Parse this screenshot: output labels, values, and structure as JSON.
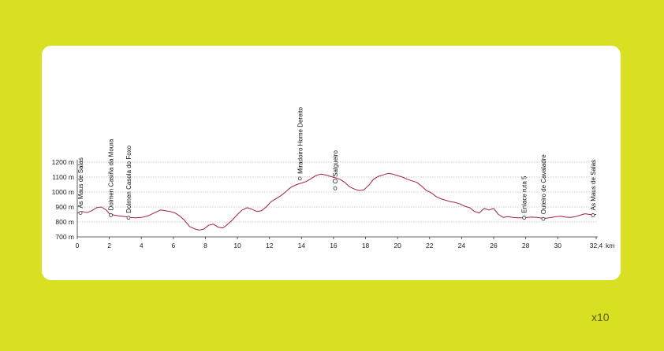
{
  "zoom_label": "x10",
  "chart_data": {
    "type": "line",
    "title": "",
    "xlabel": "",
    "ylabel": "",
    "x_unit_label": "km",
    "y_unit": "m",
    "xlim": [
      0,
      32.4
    ],
    "ylim": [
      700,
      1200
    ],
    "x_ticks": [
      0,
      2,
      4,
      6,
      8,
      10,
      12,
      14,
      16,
      18,
      20,
      22,
      24,
      26,
      28,
      30,
      32.4
    ],
    "x_tick_labels": [
      "0",
      "2",
      "4",
      "6",
      "8",
      "10",
      "12",
      "14",
      "16",
      "18",
      "20",
      "22",
      "24",
      "26",
      "28",
      "30",
      "32,4"
    ],
    "y_ticks": [
      700,
      800,
      900,
      1000,
      1100,
      1200
    ],
    "y_tick_labels": [
      "700 m",
      "800 m",
      "900 m",
      "1000 m",
      "1100 m",
      "1200 m"
    ],
    "grid": true,
    "line_color": "#a3203a",
    "series": [
      {
        "x": [
          0,
          0.3,
          0.6,
          0.9,
          1.2,
          1.5,
          1.8,
          2.0,
          2.3,
          2.6,
          3.0,
          3.3,
          3.6,
          4.0,
          4.4,
          4.8,
          5.2,
          5.5,
          5.8,
          6.1,
          6.4,
          6.7,
          7.0,
          7.3,
          7.6,
          7.9,
          8.2,
          8.5,
          8.8,
          9.1,
          9.4,
          9.7,
          10.0,
          10.3,
          10.6,
          10.9,
          11.2,
          11.5,
          11.8,
          12.1,
          12.4,
          12.7,
          13.0,
          13.2,
          13.4,
          13.7,
          14.0,
          14.3,
          14.6,
          14.9,
          15.2,
          15.5,
          15.8,
          16.1,
          16.4,
          16.7,
          17.0,
          17.3,
          17.6,
          17.9,
          18.2,
          18.5,
          18.8,
          19.1,
          19.4,
          19.7,
          20.0,
          20.3,
          20.6,
          20.9,
          21.2,
          21.5,
          21.8,
          22.1,
          22.4,
          22.7,
          23.0,
          23.3,
          23.6,
          23.9,
          24.2,
          24.5,
          24.8,
          25.1,
          25.4,
          25.7,
          26.0,
          26.3,
          26.6,
          26.9,
          27.2,
          27.5,
          27.8,
          28.1,
          28.4,
          28.7,
          29.0,
          29.3,
          29.6,
          29.9,
          30.2,
          30.5,
          30.8,
          31.1,
          31.4,
          31.7,
          32.0,
          32.4
        ],
        "values": [
          860,
          870,
          862,
          875,
          895,
          900,
          880,
          855,
          845,
          840,
          835,
          830,
          828,
          830,
          840,
          860,
          880,
          875,
          870,
          860,
          840,
          810,
          770,
          755,
          745,
          752,
          778,
          785,
          765,
          760,
          785,
          815,
          850,
          880,
          895,
          885,
          870,
          875,
          900,
          935,
          955,
          975,
          1000,
          1020,
          1035,
          1050,
          1060,
          1070,
          1090,
          1110,
          1120,
          1115,
          1105,
          1095,
          1085,
          1065,
          1035,
          1020,
          1010,
          1015,
          1045,
          1085,
          1105,
          1115,
          1125,
          1120,
          1110,
          1100,
          1085,
          1075,
          1065,
          1040,
          1010,
          995,
          970,
          955,
          945,
          935,
          930,
          920,
          905,
          895,
          870,
          860,
          890,
          880,
          890,
          850,
          830,
          835,
          830,
          828,
          828,
          830,
          832,
          830,
          826,
          825,
          830,
          835,
          838,
          832,
          830,
          835,
          845,
          855,
          850,
          850
        ]
      }
    ],
    "waypoints": [
      {
        "name": "As Maus de Salas",
        "km": 0.2,
        "elev": 860
      },
      {
        "name": "Dolmen Casiña da Moura",
        "km": 2.1,
        "elev": 845
      },
      {
        "name": "Dolmen Casola do Foxo",
        "km": 3.2,
        "elev": 828
      },
      {
        "name": "Miradoiro Home Dereito",
        "km": 13.9,
        "elev": 1090
      },
      {
        "name": "O Salgueiro",
        "km": 16.1,
        "elev": 1025
      },
      {
        "name": "Enlace ruta 5",
        "km": 27.9,
        "elev": 828
      },
      {
        "name": "Outeiro de Cavaladre",
        "km": 29.1,
        "elev": 820
      },
      {
        "name": "As Maus de Salas",
        "km": 32.2,
        "elev": 845
      }
    ]
  }
}
